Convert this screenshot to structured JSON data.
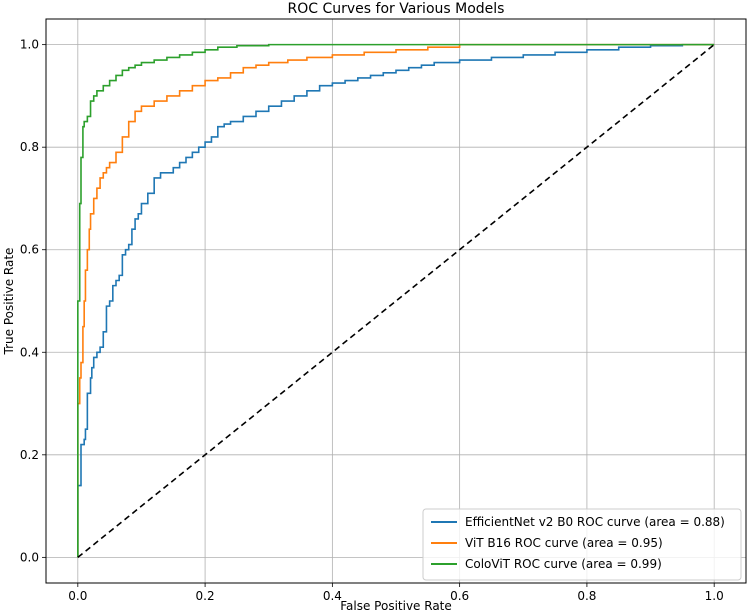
{
  "chart_data": {
    "type": "line",
    "title": "ROC Curves for Various Models",
    "xlabel": "False Positive Rate",
    "ylabel": "True Positive Rate",
    "xlim": [
      -0.05,
      1.05
    ],
    "ylim": [
      -0.05,
      1.05
    ],
    "xticks": [
      0.0,
      0.2,
      0.4,
      0.6,
      0.8,
      1.0
    ],
    "yticks": [
      0.0,
      0.2,
      0.4,
      0.6,
      0.8,
      1.0
    ],
    "xtick_labels": [
      "0.0",
      "0.2",
      "0.4",
      "0.6",
      "0.8",
      "1.0"
    ],
    "ytick_labels": [
      "0.0",
      "0.2",
      "0.4",
      "0.6",
      "0.8",
      "1.0"
    ],
    "grid": true,
    "legend_position": "lower-right",
    "series": [
      {
        "name": "EfficientNet v2 B0 ROC curve (area = 0.88)",
        "color": "#1f77b4",
        "style": "solid",
        "x": [
          0.0,
          0.0,
          0.005,
          0.005,
          0.01,
          0.012,
          0.015,
          0.02,
          0.022,
          0.025,
          0.03,
          0.035,
          0.04,
          0.045,
          0.05,
          0.055,
          0.06,
          0.065,
          0.07,
          0.075,
          0.08,
          0.085,
          0.09,
          0.095,
          0.1,
          0.11,
          0.12,
          0.13,
          0.14,
          0.15,
          0.16,
          0.17,
          0.18,
          0.19,
          0.2,
          0.21,
          0.22,
          0.23,
          0.24,
          0.26,
          0.28,
          0.3,
          0.32,
          0.34,
          0.36,
          0.38,
          0.4,
          0.42,
          0.44,
          0.46,
          0.48,
          0.5,
          0.52,
          0.54,
          0.56,
          0.6,
          0.65,
          0.7,
          0.75,
          0.8,
          0.85,
          0.9,
          0.95,
          1.0
        ],
        "y": [
          0.0,
          0.14,
          0.2,
          0.22,
          0.23,
          0.25,
          0.32,
          0.35,
          0.37,
          0.39,
          0.4,
          0.41,
          0.44,
          0.49,
          0.5,
          0.53,
          0.54,
          0.55,
          0.59,
          0.6,
          0.61,
          0.64,
          0.66,
          0.67,
          0.69,
          0.71,
          0.74,
          0.75,
          0.75,
          0.76,
          0.77,
          0.78,
          0.79,
          0.8,
          0.81,
          0.82,
          0.84,
          0.845,
          0.85,
          0.86,
          0.87,
          0.88,
          0.89,
          0.9,
          0.91,
          0.92,
          0.925,
          0.93,
          0.935,
          0.94,
          0.945,
          0.95,
          0.955,
          0.96,
          0.965,
          0.97,
          0.975,
          0.98,
          0.985,
          0.99,
          0.995,
          0.998,
          1.0,
          1.0
        ]
      },
      {
        "name": "ViT B16 ROC curve (area = 0.95)",
        "color": "#ff7f0e",
        "style": "solid",
        "x": [
          0.0,
          0.0,
          0.003,
          0.005,
          0.008,
          0.01,
          0.012,
          0.015,
          0.018,
          0.02,
          0.025,
          0.03,
          0.035,
          0.04,
          0.045,
          0.05,
          0.06,
          0.07,
          0.08,
          0.09,
          0.1,
          0.12,
          0.14,
          0.16,
          0.18,
          0.2,
          0.22,
          0.24,
          0.26,
          0.28,
          0.3,
          0.33,
          0.36,
          0.4,
          0.45,
          0.5,
          0.55,
          0.6,
          0.7,
          0.8,
          0.9,
          1.0
        ],
        "y": [
          0.0,
          0.3,
          0.35,
          0.38,
          0.45,
          0.5,
          0.56,
          0.6,
          0.64,
          0.67,
          0.7,
          0.72,
          0.74,
          0.75,
          0.76,
          0.77,
          0.79,
          0.82,
          0.85,
          0.87,
          0.88,
          0.89,
          0.9,
          0.91,
          0.92,
          0.93,
          0.935,
          0.945,
          0.955,
          0.96,
          0.965,
          0.97,
          0.975,
          0.98,
          0.985,
          0.99,
          0.995,
          1.0,
          1.0,
          1.0,
          1.0,
          1.0
        ]
      },
      {
        "name": "ColoViT ROC curve (area = 0.99)",
        "color": "#2ca02c",
        "style": "solid",
        "x": [
          0.0,
          0.0,
          0.003,
          0.005,
          0.008,
          0.01,
          0.015,
          0.02,
          0.025,
          0.03,
          0.04,
          0.05,
          0.06,
          0.07,
          0.08,
          0.09,
          0.1,
          0.12,
          0.14,
          0.16,
          0.18,
          0.2,
          0.22,
          0.25,
          0.3,
          0.35,
          0.4,
          0.5,
          0.6,
          0.7,
          0.8,
          0.9,
          1.0
        ],
        "y": [
          0.0,
          0.5,
          0.69,
          0.78,
          0.84,
          0.85,
          0.86,
          0.89,
          0.9,
          0.91,
          0.92,
          0.93,
          0.94,
          0.95,
          0.955,
          0.96,
          0.965,
          0.97,
          0.975,
          0.98,
          0.985,
          0.99,
          0.995,
          0.998,
          1.0,
          1.0,
          1.0,
          1.0,
          1.0,
          1.0,
          1.0,
          1.0,
          1.0
        ]
      },
      {
        "name": "",
        "color": "#000000",
        "style": "dashed",
        "x": [
          0.0,
          1.0
        ],
        "y": [
          0.0,
          1.0
        ]
      }
    ]
  }
}
